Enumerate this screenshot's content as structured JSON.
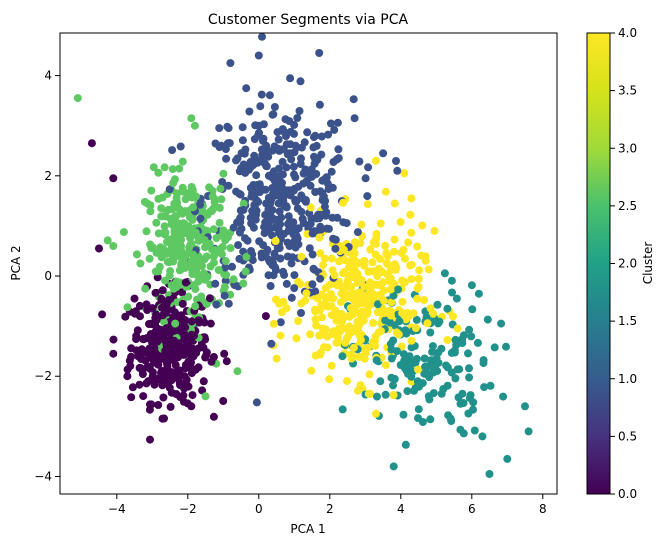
{
  "chart_data": {
    "type": "scatter",
    "title": "Customer Segments via PCA",
    "xlabel": "PCA 1",
    "ylabel": "PCA 2",
    "xlim": [
      -5.6,
      8.4
    ],
    "ylim": [
      -4.35,
      4.85
    ],
    "xticks": [
      -4,
      -2,
      0,
      2,
      4,
      6,
      8
    ],
    "yticks": [
      -4,
      -2,
      0,
      2,
      4
    ],
    "grid": false,
    "colormap": "viridis",
    "colorbar": {
      "label": "Cluster",
      "range": [
        0.0,
        4.0
      ],
      "ticks": [
        "0.0",
        "0.5",
        "1.0",
        "1.5",
        "2.0",
        "2.5",
        "3.0",
        "3.5",
        "4.0"
      ]
    },
    "clusters": [
      {
        "cluster": 0,
        "color": "#440154",
        "center": [
          -2.5,
          -1.4
        ],
        "spread": [
          0.55,
          0.55
        ],
        "n": 330,
        "outliers": [
          [
            -4.7,
            2.65
          ],
          [
            -4.1,
            1.95
          ],
          [
            -4.5,
            0.55
          ],
          [
            -4.1,
            -1.55
          ],
          [
            -3.5,
            -0.45
          ],
          [
            -3.7,
            -2.0
          ],
          [
            -1.9,
            -2.6
          ],
          [
            0.2,
            -0.8
          ],
          [
            -0.9,
            -1.7
          ]
        ]
      },
      {
        "cluster": 1,
        "color": "#3b528b",
        "center": [
          0.55,
          1.5
        ],
        "spread": [
          1.05,
          1.0
        ],
        "n": 420,
        "outliers": [
          [
            0.0,
            4.4
          ],
          [
            1.7,
            4.45
          ],
          [
            -0.8,
            4.25
          ],
          [
            2.7,
            3.15
          ],
          [
            3.5,
            2.45
          ],
          [
            3.9,
            2.1
          ],
          [
            -1.6,
            1.1
          ]
        ]
      },
      {
        "cluster": 2,
        "color": "#21918c",
        "center": [
          4.6,
          -1.7
        ],
        "spread": [
          1.0,
          0.75
        ],
        "n": 170,
        "outliers": [
          [
            7.6,
            -3.1
          ],
          [
            6.5,
            -3.95
          ],
          [
            7.0,
            -3.65
          ],
          [
            3.8,
            -3.8
          ],
          [
            6.3,
            -3.2
          ],
          [
            7.5,
            -2.6
          ]
        ]
      },
      {
        "cluster": 3,
        "color": "#5ec962",
        "center": [
          -2.0,
          0.6
        ],
        "spread": [
          0.6,
          0.7
        ],
        "n": 300,
        "outliers": [
          [
            -5.1,
            3.55
          ],
          [
            -1.9,
            3.15
          ],
          [
            -4.1,
            0.6
          ],
          [
            -1.2,
            -1.75
          ],
          [
            -0.6,
            -1.9
          ],
          [
            -1.5,
            -2.4
          ],
          [
            -1.8,
            3.0
          ]
        ]
      },
      {
        "cluster": 4,
        "color": "#fde725",
        "center": [
          2.8,
          -0.5
        ],
        "spread": [
          0.9,
          0.75
        ],
        "n": 360,
        "outliers": [
          [
            4.3,
            1.55
          ],
          [
            4.1,
            2.05
          ],
          [
            3.3,
            2.3
          ],
          [
            4.95,
            0.9
          ],
          [
            3.1,
            -2.35
          ],
          [
            3.3,
            -2.75
          ],
          [
            5.6,
            -1.05
          ]
        ]
      }
    ]
  }
}
